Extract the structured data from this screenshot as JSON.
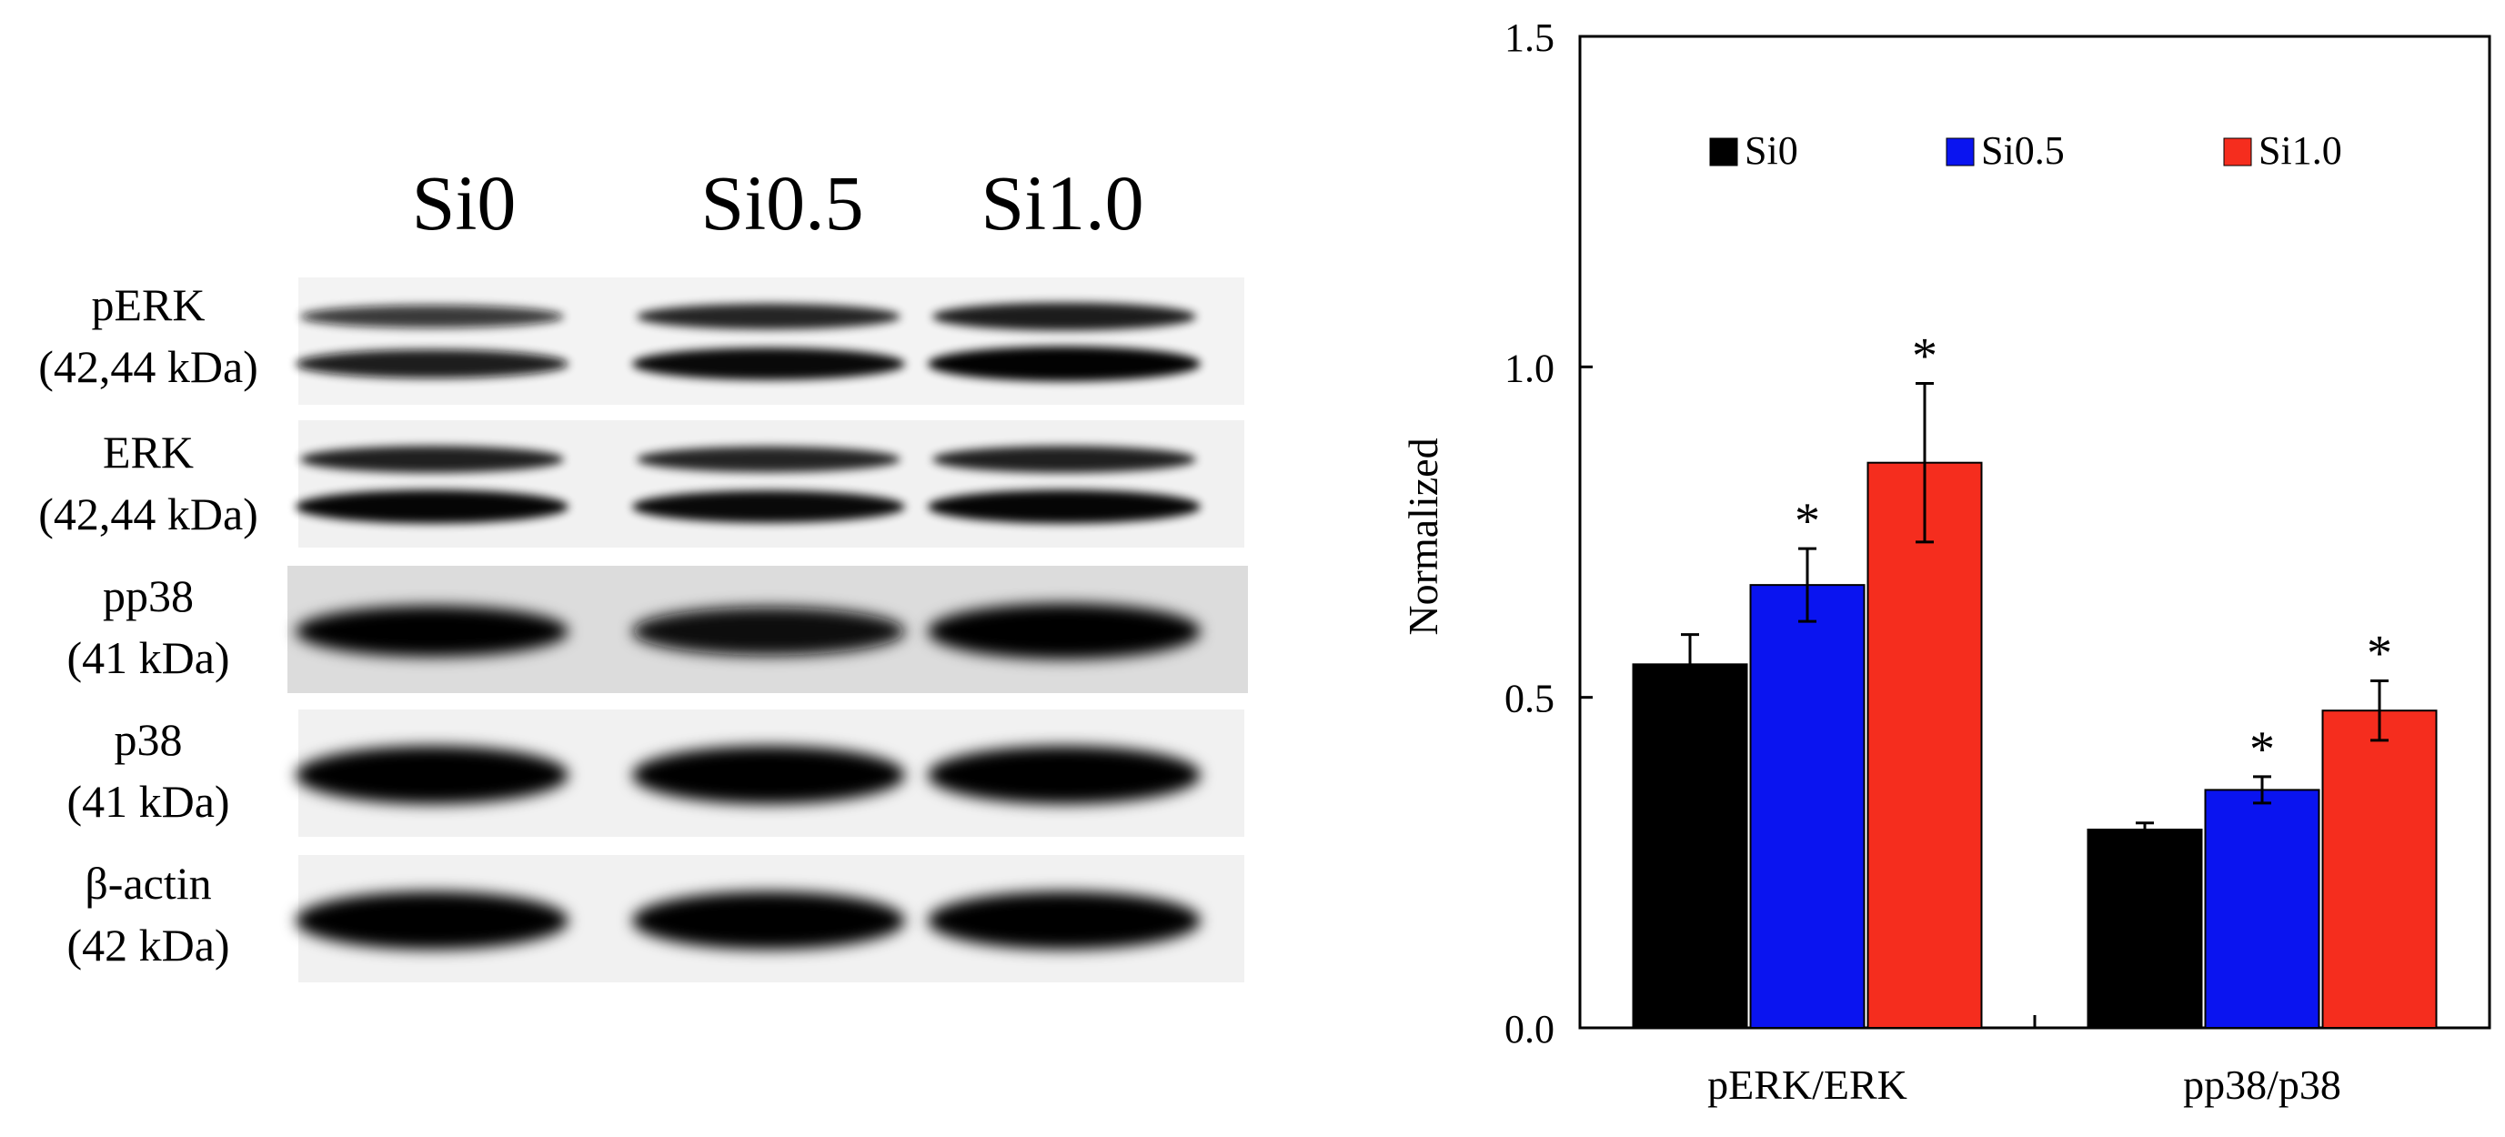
{
  "blot": {
    "lanes": [
      "Si0",
      "Si0.5",
      "Si1.0"
    ],
    "rows": [
      {
        "label": "pERK",
        "size": "(42,44 kDa)",
        "bands": "double",
        "background": "#f3f3f3",
        "intensity": [
          0.72,
          0.85,
          0.95
        ]
      },
      {
        "label": "ERK",
        "size": "(42,44 kDa)",
        "bands": "double",
        "background": "#f1f1f1",
        "intensity": [
          0.9,
          0.85,
          0.9
        ]
      },
      {
        "label": "pp38",
        "size": "(41 kDa)",
        "bands": "single",
        "background": "#dcdcdc",
        "intensity": [
          0.85,
          0.8,
          0.95
        ]
      },
      {
        "label": "p38",
        "size": "(41 kDa)",
        "bands": "single",
        "background": "#f1f1f1",
        "intensity": [
          1.0,
          1.0,
          1.0
        ]
      },
      {
        "label": "β-actin",
        "size": "(42 kDa)",
        "bands": "single",
        "background": "#f1f1f1",
        "intensity": [
          1.0,
          1.0,
          1.0
        ]
      }
    ]
  },
  "chart_data": {
    "type": "bar",
    "title": "",
    "xlabel": "",
    "ylabel": "Normalized",
    "ylim": [
      0.0,
      1.5
    ],
    "yticks": [
      "0.0",
      "0.5",
      "1.0",
      "1.5"
    ],
    "grid": false,
    "legend": "top",
    "categories": [
      "pERK/ERK",
      "pp38/p38"
    ],
    "series": [
      {
        "name": "Si0",
        "color": "#000000",
        "values": [
          0.55,
          0.3
        ],
        "errors": [
          0.045,
          0.01
        ],
        "significant": [
          false,
          false
        ]
      },
      {
        "name": "Si0.5",
        "color": "#0a14f0",
        "values": [
          0.67,
          0.36
        ],
        "errors": [
          0.055,
          0.02
        ],
        "significant": [
          true,
          true
        ]
      },
      {
        "name": "Si1.0",
        "color": "#f52d1e",
        "values": [
          0.855,
          0.48
        ],
        "errors": [
          0.12,
          0.045
        ],
        "significant": [
          true,
          true
        ]
      }
    ],
    "significance_marker": "*"
  }
}
